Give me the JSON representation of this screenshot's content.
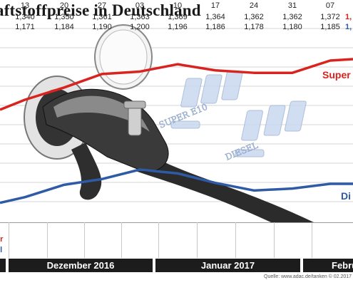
{
  "header": {
    "title": "aftstoffpreise in Deutschland"
  },
  "chart_data": {
    "type": "line",
    "title": "aftstoffpreise in Deutschland",
    "categories": [
      "13",
      "20",
      "27",
      "03",
      "10",
      "17",
      "24",
      "31",
      "07"
    ],
    "series": [
      {
        "name": "Super",
        "label_text": "Super",
        "row_label": "er",
        "color": "#d8231f",
        "values": [
          1.34,
          1.35,
          1.361,
          1.363,
          1.369,
          1.364,
          1.362,
          1.362,
          1.372
        ],
        "display": [
          "1,340",
          "1,350",
          "1,361",
          "1,363",
          "1,369",
          "1,364",
          "1,362",
          "1,362",
          "1,372"
        ],
        "partial_last": "1,"
      },
      {
        "name": "Diesel",
        "label_text": "Di",
        "row_label": "el",
        "color": "#2e5aa6",
        "values": [
          1.171,
          1.184,
          1.19,
          1.2,
          1.196,
          1.186,
          1.178,
          1.18,
          1.185
        ],
        "display": [
          "1,171",
          "1,184",
          "1,190",
          "1,200",
          "1,196",
          "1,186",
          "1,178",
          "1,180",
          "1,185"
        ],
        "partial_last": "1,"
      }
    ],
    "months": [
      "Dezember 2016",
      "Januar 2017",
      "Febru"
    ],
    "pump_display_labels": [
      "SUPER E10",
      "DIESEL"
    ],
    "grid": true
  },
  "source": "Quelle: www.adac.de/tanken   © 02.2017"
}
